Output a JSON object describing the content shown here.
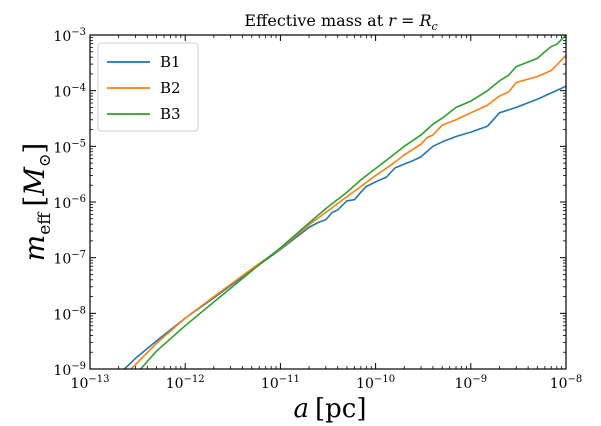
{
  "chart_data": {
    "type": "line",
    "title": "Effective mass at r = R_c",
    "title_parts": {
      "text": "Effective mass at ",
      "var1": "r",
      "eq": " = ",
      "var2": "R",
      "sub": "c"
    },
    "xlabel": "a [pc]",
    "xlabel_parts": {
      "var": "a",
      "unit": "[pc]"
    },
    "ylabel": "m_eff [M_⊙]",
    "ylabel_parts": {
      "var": "m",
      "sub": "eff",
      "unit_open": "[",
      "unit": "M",
      "unit_sub": "⊙",
      "unit_close": "]"
    },
    "xscale": "log",
    "yscale": "log",
    "xlim": [
      1e-13,
      1e-08
    ],
    "ylim": [
      1e-09,
      0.001
    ],
    "xticks": [
      {
        "base": "10",
        "exp": "−13",
        "value": 1e-13
      },
      {
        "base": "10",
        "exp": "−12",
        "value": 1e-12
      },
      {
        "base": "10",
        "exp": "−11",
        "value": 1e-11
      },
      {
        "base": "10",
        "exp": "−10",
        "value": 1e-10
      },
      {
        "base": "10",
        "exp": "−9",
        "value": 1e-09
      },
      {
        "base": "10",
        "exp": "−8",
        "value": 1e-08
      }
    ],
    "yticks": [
      {
        "base": "10",
        "exp": "−9",
        "value": 1e-09
      },
      {
        "base": "10",
        "exp": "−8",
        "value": 1e-08
      },
      {
        "base": "10",
        "exp": "−7",
        "value": 1e-07
      },
      {
        "base": "10",
        "exp": "−6",
        "value": 1e-06
      },
      {
        "base": "10",
        "exp": "−5",
        "value": 1e-05
      },
      {
        "base": "10",
        "exp": "−4",
        "value": 0.0001
      },
      {
        "base": "10",
        "exp": "−3",
        "value": 0.001
      }
    ],
    "legend_position": "top-left",
    "grid": false,
    "series": [
      {
        "name": "B1",
        "color": "#1f77b4",
        "points": [
          [
            2.3e-13,
            1e-09
          ],
          [
            3e-13,
            1.55e-09
          ],
          [
            5e-13,
            3.2e-09
          ],
          [
            1e-12,
            8.2e-09
          ],
          [
            2e-12,
            1.9e-08
          ],
          [
            5e-12,
            6e-08
          ],
          [
            1e-11,
            1.4e-07
          ],
          [
            2e-11,
            3.5e-07
          ],
          [
            2.5e-11,
            4.3e-07
          ],
          [
            3e-11,
            4.8e-07
          ],
          [
            3.5e-11,
            6.5e-07
          ],
          [
            4e-11,
            7.2e-07
          ],
          [
            5e-11,
            1.05e-06
          ],
          [
            6e-11,
            1.1e-06
          ],
          [
            7e-11,
            1.5e-06
          ],
          [
            8e-11,
            1.9e-06
          ],
          [
            1e-10,
            2.3e-06
          ],
          [
            1.3e-10,
            2.8e-06
          ],
          [
            1.6e-10,
            4.1e-06
          ],
          [
            2e-10,
            4.8e-06
          ],
          [
            2.5e-10,
            5.6e-06
          ],
          [
            3e-10,
            6.5e-06
          ],
          [
            4e-10,
            1e-05
          ],
          [
            5e-10,
            1.2e-05
          ],
          [
            7e-10,
            1.5e-05
          ],
          [
            1e-09,
            1.8e-05
          ],
          [
            1.5e-09,
            2.3e-05
          ],
          [
            2e-09,
            4e-05
          ],
          [
            3e-09,
            5e-05
          ],
          [
            5e-09,
            7e-05
          ],
          [
            1e-08,
            0.00012
          ]
        ]
      },
      {
        "name": "B2",
        "color": "#ff7f0e",
        "points": [
          [
            2.7e-13,
            1e-09
          ],
          [
            5e-13,
            2.9e-09
          ],
          [
            1e-12,
            8.2e-09
          ],
          [
            2e-12,
            2e-08
          ],
          [
            5e-12,
            6.3e-08
          ],
          [
            1e-11,
            1.45e-07
          ],
          [
            2e-11,
            3.9e-07
          ],
          [
            3e-11,
            6.5e-07
          ],
          [
            5e-11,
            1.25e-06
          ],
          [
            7e-11,
            1.9e-06
          ],
          [
            1e-10,
            3e-06
          ],
          [
            1.5e-10,
            4.8e-06
          ],
          [
            2e-10,
            7e-06
          ],
          [
            3e-10,
            1.1e-05
          ],
          [
            3.5e-10,
            1.45e-05
          ],
          [
            4e-10,
            1.6e-05
          ],
          [
            5e-10,
            2.4e-05
          ],
          [
            7e-10,
            3e-05
          ],
          [
            1e-09,
            4e-05
          ],
          [
            1.5e-09,
            5.5e-05
          ],
          [
            2e-09,
            8e-05
          ],
          [
            2.5e-09,
            9.5e-05
          ],
          [
            3e-09,
            0.00014
          ],
          [
            5e-09,
            0.00018
          ],
          [
            7e-09,
            0.00023
          ],
          [
            1e-08,
            0.00043
          ]
        ]
      },
      {
        "name": "B3",
        "color": "#2ca02c",
        "points": [
          [
            3.4e-13,
            1e-09
          ],
          [
            5e-13,
            2.1e-09
          ],
          [
            1e-12,
            6e-09
          ],
          [
            2e-12,
            1.6e-08
          ],
          [
            5e-12,
            5.8e-08
          ],
          [
            1e-11,
            1.5e-07
          ],
          [
            2e-11,
            4.2e-07
          ],
          [
            3e-11,
            7.6e-07
          ],
          [
            5e-11,
            1.5e-06
          ],
          [
            7e-11,
            2.5e-06
          ],
          [
            1e-10,
            4e-06
          ],
          [
            1.5e-10,
            6.8e-06
          ],
          [
            2e-10,
            1e-05
          ],
          [
            3e-10,
            1.6e-05
          ],
          [
            4e-10,
            2.5e-05
          ],
          [
            5e-10,
            3.2e-05
          ],
          [
            7e-10,
            5e-05
          ],
          [
            1e-09,
            6.5e-05
          ],
          [
            1.5e-09,
            0.0001
          ],
          [
            2e-09,
            0.00015
          ],
          [
            2.5e-09,
            0.00019
          ],
          [
            3e-09,
            0.00027
          ],
          [
            5e-09,
            0.00038
          ],
          [
            6e-09,
            0.0005
          ],
          [
            7e-09,
            0.00062
          ],
          [
            8e-09,
            0.00068
          ],
          [
            1e-08,
            0.001
          ]
        ]
      }
    ]
  }
}
